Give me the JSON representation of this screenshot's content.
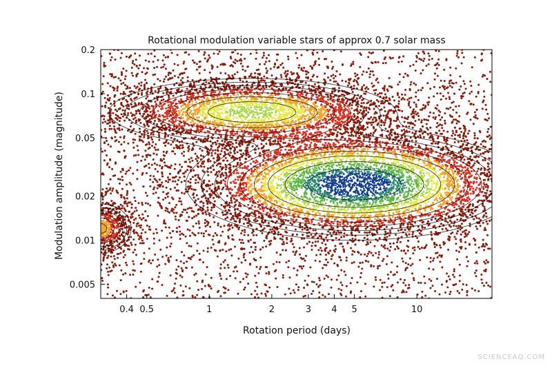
{
  "chart_data": {
    "type": "heatmap",
    "title": "Rotational modulation variable stars of approx 0.7 solar mass",
    "xlabel": "Rotation period (days)",
    "ylabel": "Modulation amplitude (magnitude)",
    "x_scale": "log",
    "y_scale": "log",
    "xlim": [
      0.3,
      23
    ],
    "ylim": [
      0.004,
      0.2
    ],
    "x_ticks": [
      {
        "value": 0.4,
        "label": "0.4"
      },
      {
        "value": 0.5,
        "label": "0.5"
      },
      {
        "value": 1,
        "label": "1"
      },
      {
        "value": 2,
        "label": "2"
      },
      {
        "value": 3,
        "label": "3"
      },
      {
        "value": 4,
        "label": "4"
      },
      {
        "value": 5,
        "label": "5"
      },
      {
        "value": 10,
        "label": "10"
      }
    ],
    "y_ticks": [
      {
        "value": 0.2,
        "label": "0.2"
      },
      {
        "value": 0.1,
        "label": "0.1"
      },
      {
        "value": 0.05,
        "label": "0.05"
      },
      {
        "value": 0.02,
        "label": "0.02"
      },
      {
        "value": 0.01,
        "label": "0.01"
      },
      {
        "value": 0.005,
        "label": "0.005"
      }
    ],
    "density_peaks": [
      {
        "name": "main",
        "x": 5.0,
        "y": 0.024,
        "sx": 0.32,
        "sy": 0.15,
        "w": 1.0
      },
      {
        "name": "upper",
        "x": 1.6,
        "y": 0.075,
        "sx": 0.3,
        "sy": 0.1,
        "w": 0.55
      },
      {
        "name": "fast",
        "x": 0.3,
        "y": 0.012,
        "sx": 0.07,
        "sy": 0.08,
        "w": 0.35
      }
    ],
    "color_scale": [
      "#8b1a0a",
      "#d7301f",
      "#f3a52a",
      "#e8e84a",
      "#a6d84a",
      "#5cb845",
      "#2b8a6c",
      "#123f8f"
    ],
    "contour_color": "#000000",
    "grid": false,
    "legend": "none"
  },
  "watermark": "SCIENCEAQ.COM"
}
